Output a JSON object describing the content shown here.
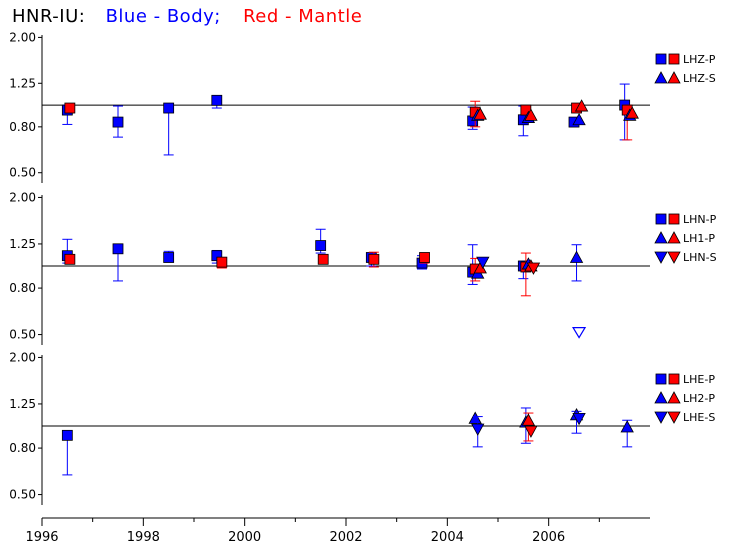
{
  "title": {
    "station": "HNR-IU:",
    "blue_text": "Blue - Body;",
    "red_text": "Red - Mantle",
    "blue_color": "#0000ff",
    "red_color": "#ff0000"
  },
  "chart_data": [
    {
      "type": "scatter",
      "panel": "top",
      "y_scale": "log",
      "ylim": [
        0.45,
        2.05
      ],
      "yticks": [
        "0.50",
        "0.80",
        "1.25",
        "2.00"
      ],
      "reference_line": 1.0,
      "legend": [
        {
          "label": "LHZ-P",
          "marker": "square"
        },
        {
          "label": "LHZ-S",
          "marker": "triangle-up"
        }
      ],
      "points": [
        {
          "x": 1996.5,
          "y": 0.95,
          "lo": 0.82,
          "hi": 1.0,
          "color": "blue",
          "marker": "square"
        },
        {
          "x": 1996.55,
          "y": 0.97,
          "lo": null,
          "hi": null,
          "color": "red",
          "marker": "square"
        },
        {
          "x": 1997.5,
          "y": 0.84,
          "lo": 0.72,
          "hi": 0.99,
          "color": "blue",
          "marker": "square"
        },
        {
          "x": 1998.5,
          "y": 0.97,
          "lo": 0.6,
          "hi": 0.99,
          "color": "blue",
          "marker": "square"
        },
        {
          "x": 1999.45,
          "y": 1.05,
          "lo": 0.97,
          "hi": 1.08,
          "color": "blue",
          "marker": "square"
        },
        {
          "x": 2004.5,
          "y": 0.85,
          "lo": 0.78,
          "hi": 0.98,
          "color": "blue",
          "marker": "square"
        },
        {
          "x": 2004.55,
          "y": 0.93,
          "lo": 0.8,
          "hi": 1.04,
          "color": "red",
          "marker": "square"
        },
        {
          "x": 2004.6,
          "y": 0.9,
          "lo": null,
          "hi": null,
          "color": "blue",
          "marker": "triangle-up"
        },
        {
          "x": 2004.65,
          "y": 0.91,
          "lo": null,
          "hi": null,
          "color": "red",
          "marker": "triangle-up"
        },
        {
          "x": 2005.5,
          "y": 0.86,
          "lo": 0.73,
          "hi": 0.99,
          "color": "blue",
          "marker": "square"
        },
        {
          "x": 2005.55,
          "y": 0.95,
          "lo": null,
          "hi": null,
          "color": "red",
          "marker": "square"
        },
        {
          "x": 2005.6,
          "y": 0.88,
          "lo": null,
          "hi": null,
          "color": "blue",
          "marker": "triangle-up"
        },
        {
          "x": 2005.65,
          "y": 0.9,
          "lo": null,
          "hi": null,
          "color": "red",
          "marker": "triangle-up"
        },
        {
          "x": 2006.5,
          "y": 0.84,
          "lo": 0.82,
          "hi": 0.88,
          "color": "blue",
          "marker": "square"
        },
        {
          "x": 2006.55,
          "y": 0.97,
          "lo": null,
          "hi": null,
          "color": "red",
          "marker": "square"
        },
        {
          "x": 2006.6,
          "y": 0.86,
          "lo": null,
          "hi": null,
          "color": "blue",
          "marker": "triangle-up"
        },
        {
          "x": 2006.65,
          "y": 0.99,
          "lo": null,
          "hi": null,
          "color": "red",
          "marker": "triangle-up"
        },
        {
          "x": 2007.5,
          "y": 1.0,
          "lo": 0.7,
          "hi": 1.24,
          "color": "blue",
          "marker": "square"
        },
        {
          "x": 2007.55,
          "y": 0.95,
          "lo": 0.7,
          "hi": 1.0,
          "color": "red",
          "marker": "square"
        },
        {
          "x": 2007.6,
          "y": 0.9,
          "lo": null,
          "hi": null,
          "color": "blue",
          "marker": "triangle-up"
        },
        {
          "x": 2007.65,
          "y": 0.92,
          "lo": null,
          "hi": null,
          "color": "red",
          "marker": "triangle-up"
        }
      ]
    },
    {
      "type": "scatter",
      "panel": "middle",
      "y_scale": "log",
      "ylim": [
        0.45,
        2.05
      ],
      "yticks": [
        "0.50",
        "0.80",
        "1.25",
        "2.00"
      ],
      "reference_line": 1.0,
      "legend": [
        {
          "label": "LHN-P",
          "marker": "square"
        },
        {
          "label": "LH1-P",
          "marker": "triangle-up"
        },
        {
          "label": "LHN-S",
          "marker": "triangle-down"
        }
      ],
      "points": [
        {
          "x": 1996.5,
          "y": 1.11,
          "lo": 1.03,
          "hi": 1.31,
          "color": "blue",
          "marker": "square"
        },
        {
          "x": 1996.55,
          "y": 1.07,
          "lo": null,
          "hi": null,
          "color": "red",
          "marker": "square"
        },
        {
          "x": 1997.5,
          "y": 1.19,
          "lo": 0.86,
          "hi": 1.22,
          "color": "blue",
          "marker": "square"
        },
        {
          "x": 1998.5,
          "y": 1.09,
          "lo": 1.04,
          "hi": 1.16,
          "color": "blue",
          "marker": "square"
        },
        {
          "x": 1999.45,
          "y": 1.11,
          "lo": 1.03,
          "hi": 1.17,
          "color": "blue",
          "marker": "square"
        },
        {
          "x": 1999.55,
          "y": 1.04,
          "lo": 0.98,
          "hi": 1.07,
          "color": "red",
          "marker": "square"
        },
        {
          "x": 2001.5,
          "y": 1.23,
          "lo": 1.14,
          "hi": 1.45,
          "color": "blue",
          "marker": "square"
        },
        {
          "x": 2001.55,
          "y": 1.07,
          "lo": null,
          "hi": null,
          "color": "red",
          "marker": "square"
        },
        {
          "x": 2002.5,
          "y": 1.09,
          "lo": 1.0,
          "hi": 1.14,
          "color": "blue",
          "marker": "square"
        },
        {
          "x": 2002.55,
          "y": 1.07,
          "lo": 0.99,
          "hi": 1.15,
          "color": "red",
          "marker": "square"
        },
        {
          "x": 2003.5,
          "y": 1.03,
          "lo": 0.97,
          "hi": 1.11,
          "color": "blue",
          "marker": "square"
        },
        {
          "x": 2003.55,
          "y": 1.09,
          "lo": 1.03,
          "hi": 1.13,
          "color": "red",
          "marker": "square"
        },
        {
          "x": 2004.5,
          "y": 0.94,
          "lo": 0.83,
          "hi": 1.24,
          "color": "blue",
          "marker": "square"
        },
        {
          "x": 2004.55,
          "y": 0.97,
          "lo": 0.86,
          "hi": 1.08,
          "color": "red",
          "marker": "square"
        },
        {
          "x": 2004.6,
          "y": 0.93,
          "lo": null,
          "hi": null,
          "color": "blue",
          "marker": "triangle-up"
        },
        {
          "x": 2004.65,
          "y": 0.98,
          "lo": null,
          "hi": null,
          "color": "red",
          "marker": "triangle-up"
        },
        {
          "x": 2004.7,
          "y": 1.04,
          "lo": null,
          "hi": null,
          "color": "blue",
          "marker": "triangle-down"
        },
        {
          "x": 2005.5,
          "y": 1.0,
          "lo": 0.88,
          "hi": 1.05,
          "color": "blue",
          "marker": "square"
        },
        {
          "x": 2005.55,
          "y": 0.99,
          "lo": 0.74,
          "hi": 1.14,
          "color": "red",
          "marker": "square"
        },
        {
          "x": 2005.6,
          "y": 1.02,
          "lo": null,
          "hi": null,
          "color": "blue",
          "marker": "triangle-up"
        },
        {
          "x": 2005.65,
          "y": 1.0,
          "lo": null,
          "hi": null,
          "color": "red",
          "marker": "triangle-up"
        },
        {
          "x": 2005.7,
          "y": 0.98,
          "lo": null,
          "hi": null,
          "color": "red",
          "marker": "triangle-down"
        },
        {
          "x": 2006.55,
          "y": 1.09,
          "lo": 0.86,
          "hi": 1.24,
          "color": "blue",
          "marker": "triangle-up"
        },
        {
          "x": 2006.6,
          "y": 0.51,
          "lo": null,
          "hi": null,
          "color": "blue",
          "marker": "triangle-down-open"
        }
      ]
    },
    {
      "type": "scatter",
      "panel": "bottom",
      "y_scale": "log",
      "ylim": [
        0.45,
        2.05
      ],
      "yticks": [
        "0.50",
        "0.80",
        "1.25",
        "2.00"
      ],
      "reference_line": 1.0,
      "legend": [
        {
          "label": "LHE-P",
          "marker": "square"
        },
        {
          "label": "LH2-P",
          "marker": "triangle-up"
        },
        {
          "label": "LHE-S",
          "marker": "triangle-down"
        }
      ],
      "points": [
        {
          "x": 1996.5,
          "y": 0.91,
          "lo": 0.61,
          "hi": 0.92,
          "color": "blue",
          "marker": "square"
        },
        {
          "x": 2004.55,
          "y": 1.08,
          "lo": null,
          "hi": null,
          "color": "blue",
          "marker": "triangle-up"
        },
        {
          "x": 2004.6,
          "y": 0.97,
          "lo": 0.81,
          "hi": 1.1,
          "color": "blue",
          "marker": "triangle-down"
        },
        {
          "x": 2005.55,
          "y": 1.04,
          "lo": 0.84,
          "hi": 1.2,
          "color": "blue",
          "marker": "triangle-up"
        },
        {
          "x": 2005.6,
          "y": 1.06,
          "lo": 0.86,
          "hi": 1.14,
          "color": "red",
          "marker": "triangle-up"
        },
        {
          "x": 2005.65,
          "y": 0.95,
          "lo": null,
          "hi": null,
          "color": "red",
          "marker": "triangle-down"
        },
        {
          "x": 2006.55,
          "y": 1.12,
          "lo": 0.93,
          "hi": 1.16,
          "color": "blue",
          "marker": "triangle-up"
        },
        {
          "x": 2006.6,
          "y": 1.08,
          "lo": null,
          "hi": null,
          "color": "blue",
          "marker": "triangle-down"
        },
        {
          "x": 2007.55,
          "y": 0.99,
          "lo": 0.81,
          "hi": 1.06,
          "color": "blue",
          "marker": "triangle-up"
        }
      ]
    }
  ],
  "x_axis": {
    "xlim": [
      1996.0,
      2008.0
    ],
    "major_tick_labels": [
      "1996",
      "1998",
      "2000",
      "2002",
      "2004",
      "2006"
    ],
    "minor_ticks": [
      1997,
      1999,
      2001,
      2003,
      2005,
      2007
    ]
  }
}
